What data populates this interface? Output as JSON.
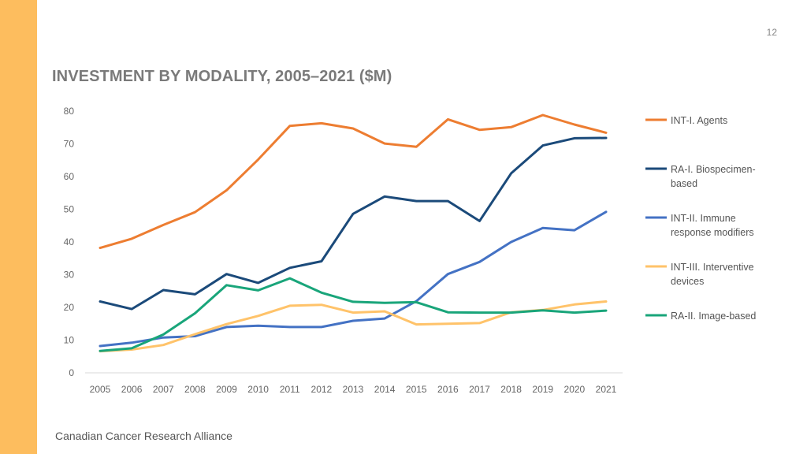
{
  "page_number": "12",
  "footer": "Canadian Cancer Research Alliance",
  "chart_data": {
    "type": "line",
    "title": "INVESTMENT BY MODALITY, 2005–2021 ($M)",
    "xlabel": "",
    "ylabel": "",
    "ylim": [
      0,
      80
    ],
    "yticks": [
      "0",
      "10",
      "20",
      "30",
      "40",
      "50",
      "60",
      "70",
      "80"
    ],
    "categories": [
      "2005",
      "2006",
      "2007",
      "2008",
      "2009",
      "2010",
      "2011",
      "2012",
      "2013",
      "2014",
      "2015",
      "2016",
      "2017",
      "2018",
      "2019",
      "2020",
      "2021"
    ],
    "series": [
      {
        "name": "INT-I. Agents",
        "legend_lines": [
          "INT-I. Agents"
        ],
        "color": "#ED7D31",
        "values": [
          38.2,
          41,
          45.2,
          49.1,
          55.8,
          65.2,
          75.5,
          76.3,
          74.7,
          70.1,
          69.1,
          77.5,
          74.3,
          75.1,
          78.8,
          75.9,
          73.4
        ]
      },
      {
        "name": "RA-I. Biospecimen-based",
        "legend_lines": [
          "RA-I. Biospecimen-",
          "based"
        ],
        "color": "#1B4A7A",
        "values": [
          21.8,
          19.5,
          25.3,
          24,
          30.2,
          27.5,
          32.1,
          34.1,
          48.6,
          53.9,
          52.5,
          52.5,
          46.4,
          61,
          69.5,
          71.7,
          71.8
        ]
      },
      {
        "name": "INT-II. Immune response modifiers",
        "legend_lines": [
          "INT-II. Immune",
          "response modifiers"
        ],
        "color": "#4472C4",
        "values": [
          8.2,
          9.2,
          10.8,
          11.2,
          14,
          14.4,
          14,
          14,
          15.9,
          16.6,
          21.9,
          30.2,
          33.9,
          40,
          44.3,
          43.6,
          49.2
        ]
      },
      {
        "name": "INT-III. Interventive devices",
        "legend_lines": [
          "INT-III. Interventive",
          "devices"
        ],
        "color": "#FFC36A",
        "values": [
          6.6,
          7.1,
          8.5,
          11.8,
          14.9,
          17.4,
          20.5,
          20.8,
          18.4,
          18.8,
          14.8,
          15,
          15.2,
          18.5,
          19.2,
          20.9,
          21.8
        ]
      },
      {
        "name": "RA-II. Image-based",
        "legend_lines": [
          "RA-II. Image-based"
        ],
        "color": "#19A57A",
        "values": [
          6.7,
          7.5,
          11.7,
          18.2,
          26.8,
          25.2,
          28.9,
          24.5,
          21.7,
          21.4,
          21.6,
          18.5,
          18.4,
          18.4,
          19.1,
          18.4,
          19
        ]
      }
    ]
  }
}
